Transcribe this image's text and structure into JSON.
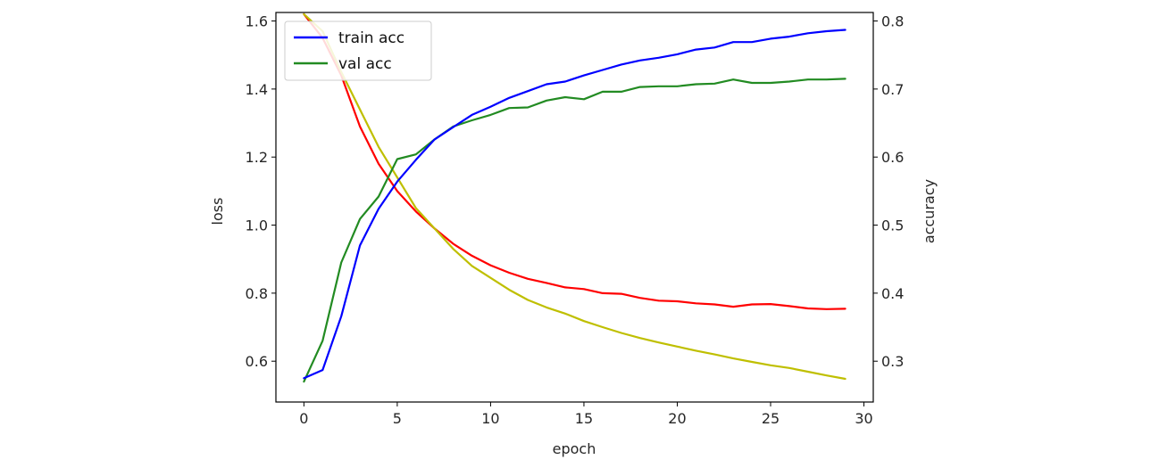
{
  "chart_data": {
    "type": "line",
    "xlabel": "epoch",
    "ylabel_left": "loss",
    "ylabel_right": "accuracy",
    "xlim": [
      -1.5,
      30.5
    ],
    "ylim_left": [
      0.48,
      1.625
    ],
    "ylim_right": [
      0.24,
      0.8125
    ],
    "xticks": [
      0,
      5,
      10,
      15,
      20,
      25,
      30
    ],
    "yticks_left": [
      0.6,
      0.8,
      1.0,
      1.2,
      1.4,
      1.6
    ],
    "ytick_labels_left": [
      "0.6",
      "0.8",
      "1.0",
      "1.2",
      "1.4",
      "1.6"
    ],
    "yticks_right": [
      0.3,
      0.4,
      0.5,
      0.6,
      0.7,
      0.8
    ],
    "ytick_labels_right": [
      "0.3",
      "0.4",
      "0.5",
      "0.6",
      "0.7",
      "0.8"
    ],
    "grid": false,
    "legend_position": "upper-left",
    "x": [
      0,
      1,
      2,
      3,
      4,
      5,
      6,
      7,
      8,
      9,
      10,
      11,
      12,
      13,
      14,
      15,
      16,
      17,
      18,
      19,
      20,
      21,
      22,
      23,
      24,
      25,
      26,
      27,
      28,
      29
    ],
    "series": [
      {
        "name": "train acc",
        "axis": "right",
        "color": "#0000ff",
        "in_legend": true,
        "values": [
          0.275,
          0.287,
          0.366,
          0.47,
          0.524,
          0.564,
          0.596,
          0.626,
          0.644,
          0.662,
          0.674,
          0.687,
          0.697,
          0.707,
          0.711,
          0.72,
          0.728,
          0.736,
          0.742,
          0.746,
          0.751,
          0.758,
          0.761,
          0.769,
          0.769,
          0.774,
          0.777,
          0.782,
          0.785,
          0.787
        ]
      },
      {
        "name": "val acc",
        "axis": "right",
        "color": "#228b22",
        "in_legend": true,
        "values": [
          0.27,
          0.33,
          0.445,
          0.509,
          0.542,
          0.597,
          0.604,
          0.626,
          0.645,
          0.654,
          0.662,
          0.672,
          0.673,
          0.683,
          0.688,
          0.685,
          0.696,
          0.696,
          0.703,
          0.704,
          0.704,
          0.707,
          0.708,
          0.714,
          0.709,
          0.709,
          0.711,
          0.714,
          0.714,
          0.715
        ]
      },
      {
        "name": "",
        "axis": "left",
        "color": "#ff0000",
        "in_legend": false,
        "values": [
          1.62,
          1.55,
          1.44,
          1.29,
          1.18,
          1.1,
          1.04,
          0.99,
          0.945,
          0.91,
          0.882,
          0.86,
          0.842,
          0.83,
          0.817,
          0.812,
          0.8,
          0.798,
          0.786,
          0.778,
          0.776,
          0.77,
          0.767,
          0.76,
          0.767,
          0.768,
          0.762,
          0.755,
          0.753,
          0.754
        ]
      },
      {
        "name": "",
        "axis": "left",
        "color": "#bfbf00",
        "in_legend": false,
        "values": [
          1.62,
          1.57,
          1.45,
          1.34,
          1.23,
          1.14,
          1.05,
          0.99,
          0.93,
          0.88,
          0.845,
          0.81,
          0.78,
          0.758,
          0.74,
          0.718,
          0.7,
          0.683,
          0.668,
          0.655,
          0.643,
          0.631,
          0.62,
          0.608,
          0.598,
          0.588,
          0.58,
          0.569,
          0.558,
          0.548
        ]
      }
    ]
  }
}
